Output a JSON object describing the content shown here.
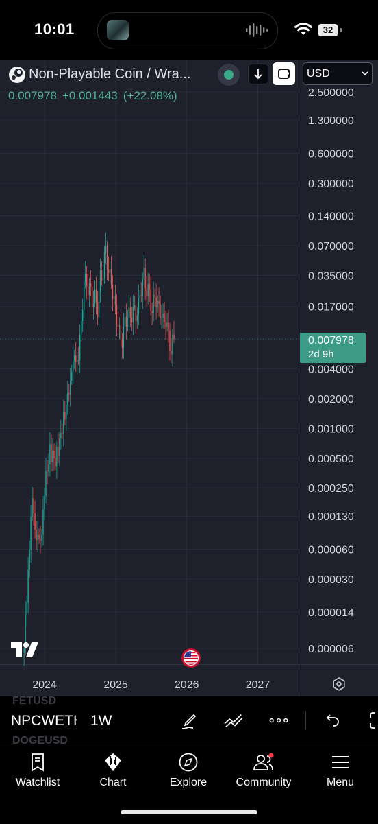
{
  "status_bar": {
    "time": "10:01",
    "battery": "32"
  },
  "header": {
    "symbol_title": "Non-Playable Coin / Wra...",
    "currency": "USD",
    "last_price": "0.007978",
    "change": "+0.001443",
    "change_pct": "(+22.08%)"
  },
  "price_badge": {
    "price": "0.007978",
    "countdown": "2d 9h"
  },
  "colors": {
    "up": "#26a69a",
    "down": "#ef5350",
    "background": "#1e202b",
    "badge": "#3d9a86",
    "accent_green": "#4fb394"
  },
  "chart_data": {
    "type": "candlestick",
    "interval": "1W",
    "y_scale": "log",
    "y_tick_labels": [
      "2.500000",
      "1.300000",
      "0.600000",
      "0.300000",
      "0.140000",
      "0.070000",
      "0.035000",
      "0.017000",
      "0.004000",
      "0.002000",
      "0.001000",
      "0.000500",
      "0.000250",
      "0.000130",
      "0.000060",
      "0.000030",
      "0.000014",
      "0.000006"
    ],
    "x_tick_labels": [
      "2024",
      "2025",
      "2026",
      "2027"
    ],
    "grid": true,
    "last_value": 0.007978,
    "close_series": [
      {
        "date": "2023-09-18",
        "close": 6e-06
      },
      {
        "date": "2023-10-09",
        "close": 4e-05
      },
      {
        "date": "2023-10-30",
        "close": 0.00017
      },
      {
        "date": "2023-11-20",
        "close": 9e-05
      },
      {
        "date": "2023-12-11",
        "close": 6e-05
      },
      {
        "date": "2024-01-01",
        "close": 0.00025
      },
      {
        "date": "2024-01-29",
        "close": 0.0006
      },
      {
        "date": "2024-02-26",
        "close": 0.00045
      },
      {
        "date": "2024-03-25",
        "close": 0.0009
      },
      {
        "date": "2024-04-22",
        "close": 0.0016
      },
      {
        "date": "2024-05-13",
        "close": 0.0035
      },
      {
        "date": "2024-06-03",
        "close": 0.0045
      },
      {
        "date": "2024-06-24",
        "close": 0.006
      },
      {
        "date": "2024-07-08",
        "close": 0.01
      },
      {
        "date": "2024-07-22",
        "close": 0.035
      },
      {
        "date": "2024-08-05",
        "close": 0.025
      },
      {
        "date": "2024-08-19",
        "close": 0.029
      },
      {
        "date": "2024-09-02",
        "close": 0.018
      },
      {
        "date": "2024-09-16",
        "close": 0.022
      },
      {
        "date": "2024-09-30",
        "close": 0.016
      },
      {
        "date": "2024-10-14",
        "close": 0.032
      },
      {
        "date": "2024-10-28",
        "close": 0.04
      },
      {
        "date": "2024-11-11",
        "close": 0.06
      },
      {
        "date": "2024-11-25",
        "close": 0.04
      },
      {
        "date": "2024-12-09",
        "close": 0.028
      },
      {
        "date": "2024-12-23",
        "close": 0.02
      },
      {
        "date": "2025-01-06",
        "close": 0.013
      },
      {
        "date": "2025-01-20",
        "close": 0.009
      },
      {
        "date": "2025-02-03",
        "close": 0.008
      },
      {
        "date": "2025-02-17",
        "close": 0.011
      },
      {
        "date": "2025-03-03",
        "close": 0.015
      },
      {
        "date": "2025-03-17",
        "close": 0.012
      },
      {
        "date": "2025-03-31",
        "close": 0.017
      },
      {
        "date": "2025-04-14",
        "close": 0.013
      },
      {
        "date": "2025-04-28",
        "close": 0.018
      },
      {
        "date": "2025-05-12",
        "close": 0.026
      },
      {
        "date": "2025-05-26",
        "close": 0.034
      },
      {
        "date": "2025-06-09",
        "close": 0.026
      },
      {
        "date": "2025-06-23",
        "close": 0.022
      },
      {
        "date": "2025-07-07",
        "close": 0.016
      },
      {
        "date": "2025-07-21",
        "close": 0.021
      },
      {
        "date": "2025-08-04",
        "close": 0.018
      },
      {
        "date": "2025-08-18",
        "close": 0.015
      },
      {
        "date": "2025-09-01",
        "close": 0.012
      },
      {
        "date": "2025-09-15",
        "close": 0.013
      },
      {
        "date": "2025-09-29",
        "close": 0.008
      },
      {
        "date": "2025-10-13",
        "close": 0.0065
      },
      {
        "date": "2025-10-27",
        "close": 0.007978
      }
    ]
  },
  "toolbar": {
    "ghost_top": "FETUSD",
    "ticker": "NPCWETH",
    "ghost_bottom": "DOGEUSD",
    "interval": "1W"
  },
  "tabs": [
    {
      "label": "Watchlist",
      "icon": "bookmark-icon"
    },
    {
      "label": "Chart",
      "icon": "chart-icon"
    },
    {
      "label": "Explore",
      "icon": "compass-icon"
    },
    {
      "label": "Community",
      "icon": "people-icon"
    },
    {
      "label": "Menu",
      "icon": "hamburger-icon"
    }
  ]
}
